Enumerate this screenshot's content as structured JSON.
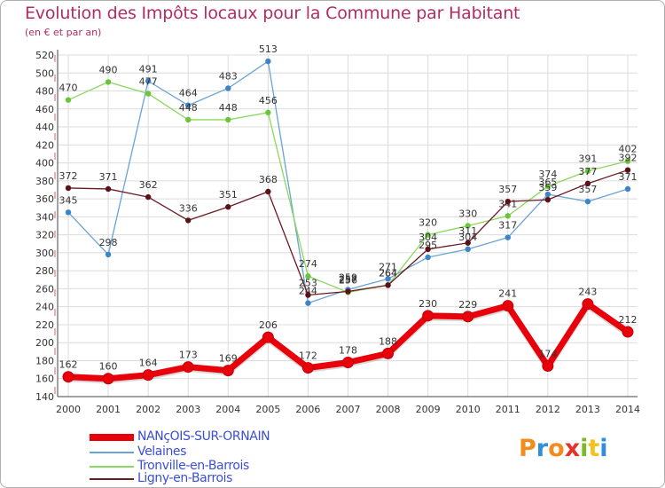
{
  "title": "Evolution des Impôts locaux pour la Commune par Habitant",
  "subtitle": "(en € et par an)",
  "logo": {
    "text": [
      "P",
      "r",
      "o",
      "x",
      "i",
      "t",
      "i"
    ],
    "colors": [
      "#f28c1e",
      "#2f8fd8",
      "#f28c1e",
      "#e5332a",
      "#7ab829",
      "#f2c21e",
      "#2f8fd8"
    ]
  },
  "chart_data": {
    "type": "line",
    "title": "Evolution des Impôts locaux pour la Commune par Habitant",
    "ylabel": "(en € et par an)",
    "xlabel": "",
    "x": [
      "2000",
      "2001",
      "2002",
      "2003",
      "2004",
      "2005",
      "2006",
      "2007",
      "2008",
      "2009",
      "2010",
      "2011",
      "2012",
      "2013",
      "2014"
    ],
    "ylim": [
      140,
      520
    ],
    "yticks": [
      140,
      160,
      180,
      200,
      220,
      240,
      260,
      280,
      300,
      320,
      340,
      360,
      380,
      400,
      420,
      440,
      460,
      480,
      500,
      520
    ],
    "grid": true,
    "legend": "bottom-left",
    "series": [
      {
        "name": "NANçOIS-SUR-ORNAIN",
        "color": "#e8000b",
        "width": 7,
        "values": [
          162,
          160,
          164,
          173,
          169,
          206,
          172,
          178,
          188,
          230,
          229,
          241,
          174,
          243,
          212
        ]
      },
      {
        "name": "Velaines",
        "color": "#6aa3d5",
        "width": 1.3,
        "values": [
          345,
          298,
          491,
          464,
          483,
          513,
          244,
          259,
          271,
          295,
          304,
          317,
          365,
          357,
          371
        ]
      },
      {
        "name": "Tronville-en-Barrois",
        "color": "#8ad85c",
        "width": 1.3,
        "values": [
          470,
          490,
          477,
          448,
          448,
          456,
          274,
          256,
          264,
          320,
          330,
          341,
          374,
          391,
          402
        ]
      },
      {
        "name": "Ligny-en-Barrois",
        "color": "#6b1a22",
        "width": 1.3,
        "values": [
          372,
          371,
          362,
          336,
          351,
          368,
          253,
          257,
          264,
          304,
          311,
          357,
          359,
          377,
          392
        ]
      }
    ]
  }
}
